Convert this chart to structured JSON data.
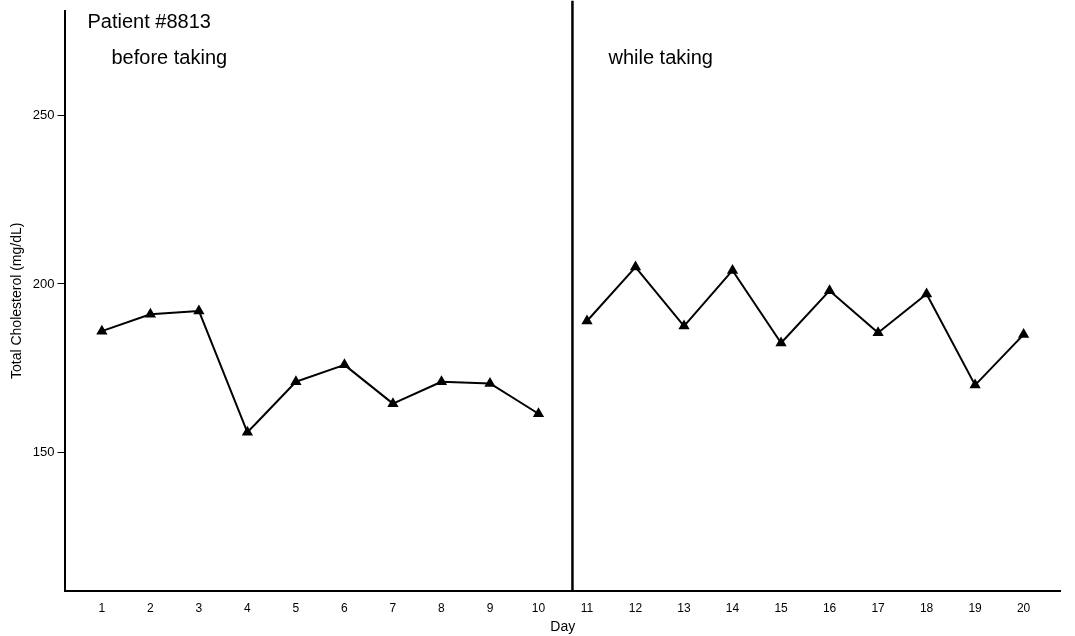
{
  "chart_data": {
    "type": "line",
    "xlabel": "Day",
    "ylabel": "Total Cholesterol (mg/dL)",
    "annotations": [
      "Patient #8813",
      "before taking",
      "while taking"
    ],
    "series": [
      {
        "color": "#000000",
        "x": [
          1,
          2,
          3,
          4,
          5,
          6,
          7,
          8,
          9,
          10
        ],
        "values": [
          186,
          191,
          192,
          156,
          171,
          176,
          164.5,
          171,
          170.5,
          161.5
        ]
      },
      {
        "color": "#000000",
        "x": [
          11,
          12,
          13,
          14,
          15,
          16,
          17,
          18,
          19,
          20
        ],
        "values": [
          189,
          205,
          187.5,
          204,
          182.5,
          198,
          185.5,
          197,
          170,
          185
        ]
      }
    ],
    "xlim": [
      0.25,
      20.75
    ],
    "xticks": [
      1,
      2,
      3,
      4,
      5,
      6,
      7,
      8,
      9,
      10,
      11,
      12,
      13,
      14,
      15,
      16,
      17,
      18,
      19,
      20
    ],
    "ylim": [
      109,
      281
    ],
    "yticks": [
      150,
      200,
      250
    ],
    "ref_lines": [
      {
        "axis": "x",
        "value": 10.7,
        "color": "#000000"
      }
    ],
    "marker": "triangle",
    "line_style": "solid",
    "grid": false,
    "legend": false
  }
}
